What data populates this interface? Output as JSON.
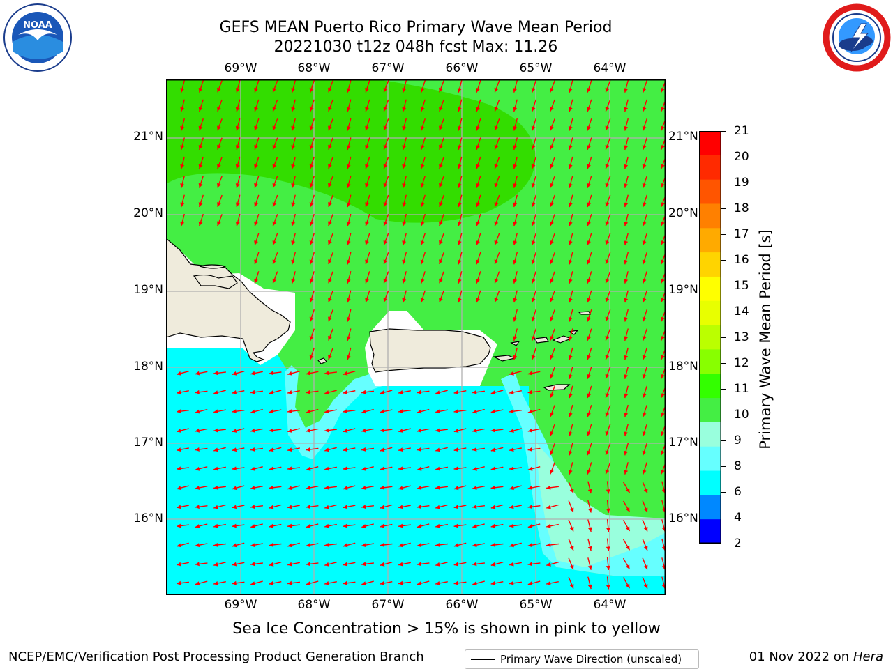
{
  "title": {
    "line1": "GEFS MEAN Puerto Rico Primary Wave Mean Period",
    "line2": "20221030 t12z 048h fcst   Max: 11.26"
  },
  "logos": {
    "left": "noaa-logo",
    "right": "nws-logo"
  },
  "map": {
    "lon_labels": [
      "69°W",
      "68°W",
      "67°W",
      "66°W",
      "65°W",
      "64°W"
    ],
    "lat_labels": [
      "21°N",
      "20°N",
      "19°N",
      "18°N",
      "17°N",
      "16°N"
    ],
    "lon_range": [
      -70.0,
      -63.25
    ],
    "lat_range": [
      15.0,
      21.75
    ],
    "grid": true,
    "vectors": "wave direction arrows (red)",
    "colors": {
      "p8": "#00ffff",
      "p9": "#66ffff",
      "p10": "#99ffdd",
      "p11": "#44ee44",
      "p12": "#33dd00",
      "land": "#efebdc",
      "arrow": "#ff0000",
      "gridline": "#b0b0b0"
    }
  },
  "legend": {
    "label": "Primary Wave Direction (unscaled)"
  },
  "colorbar": {
    "label": "Primary Wave Mean Period [s]",
    "ticks": [
      "21",
      "20",
      "19",
      "18",
      "17",
      "16",
      "15",
      "14",
      "13",
      "12",
      "11",
      "10",
      "9",
      "8",
      "6",
      "4",
      "2"
    ],
    "colors": [
      "#ff0000",
      "#ff2a00",
      "#ff5500",
      "#ff8000",
      "#ffaa00",
      "#ffd400",
      "#ffff00",
      "#e8ff00",
      "#bbff00",
      "#88ff00",
      "#33ff00",
      "#44ee44",
      "#99ffdd",
      "#66ffff",
      "#00ffff",
      "#0088ff",
      "#0000ff"
    ]
  },
  "footnote": "Sea Ice Concentration > 15% is shown in pink to yellow",
  "credits": {
    "left": "NCEP/EMC/Verification Post Processing Product Generation Branch",
    "date": "01 Nov 2022 on",
    "machine": "Hera"
  }
}
